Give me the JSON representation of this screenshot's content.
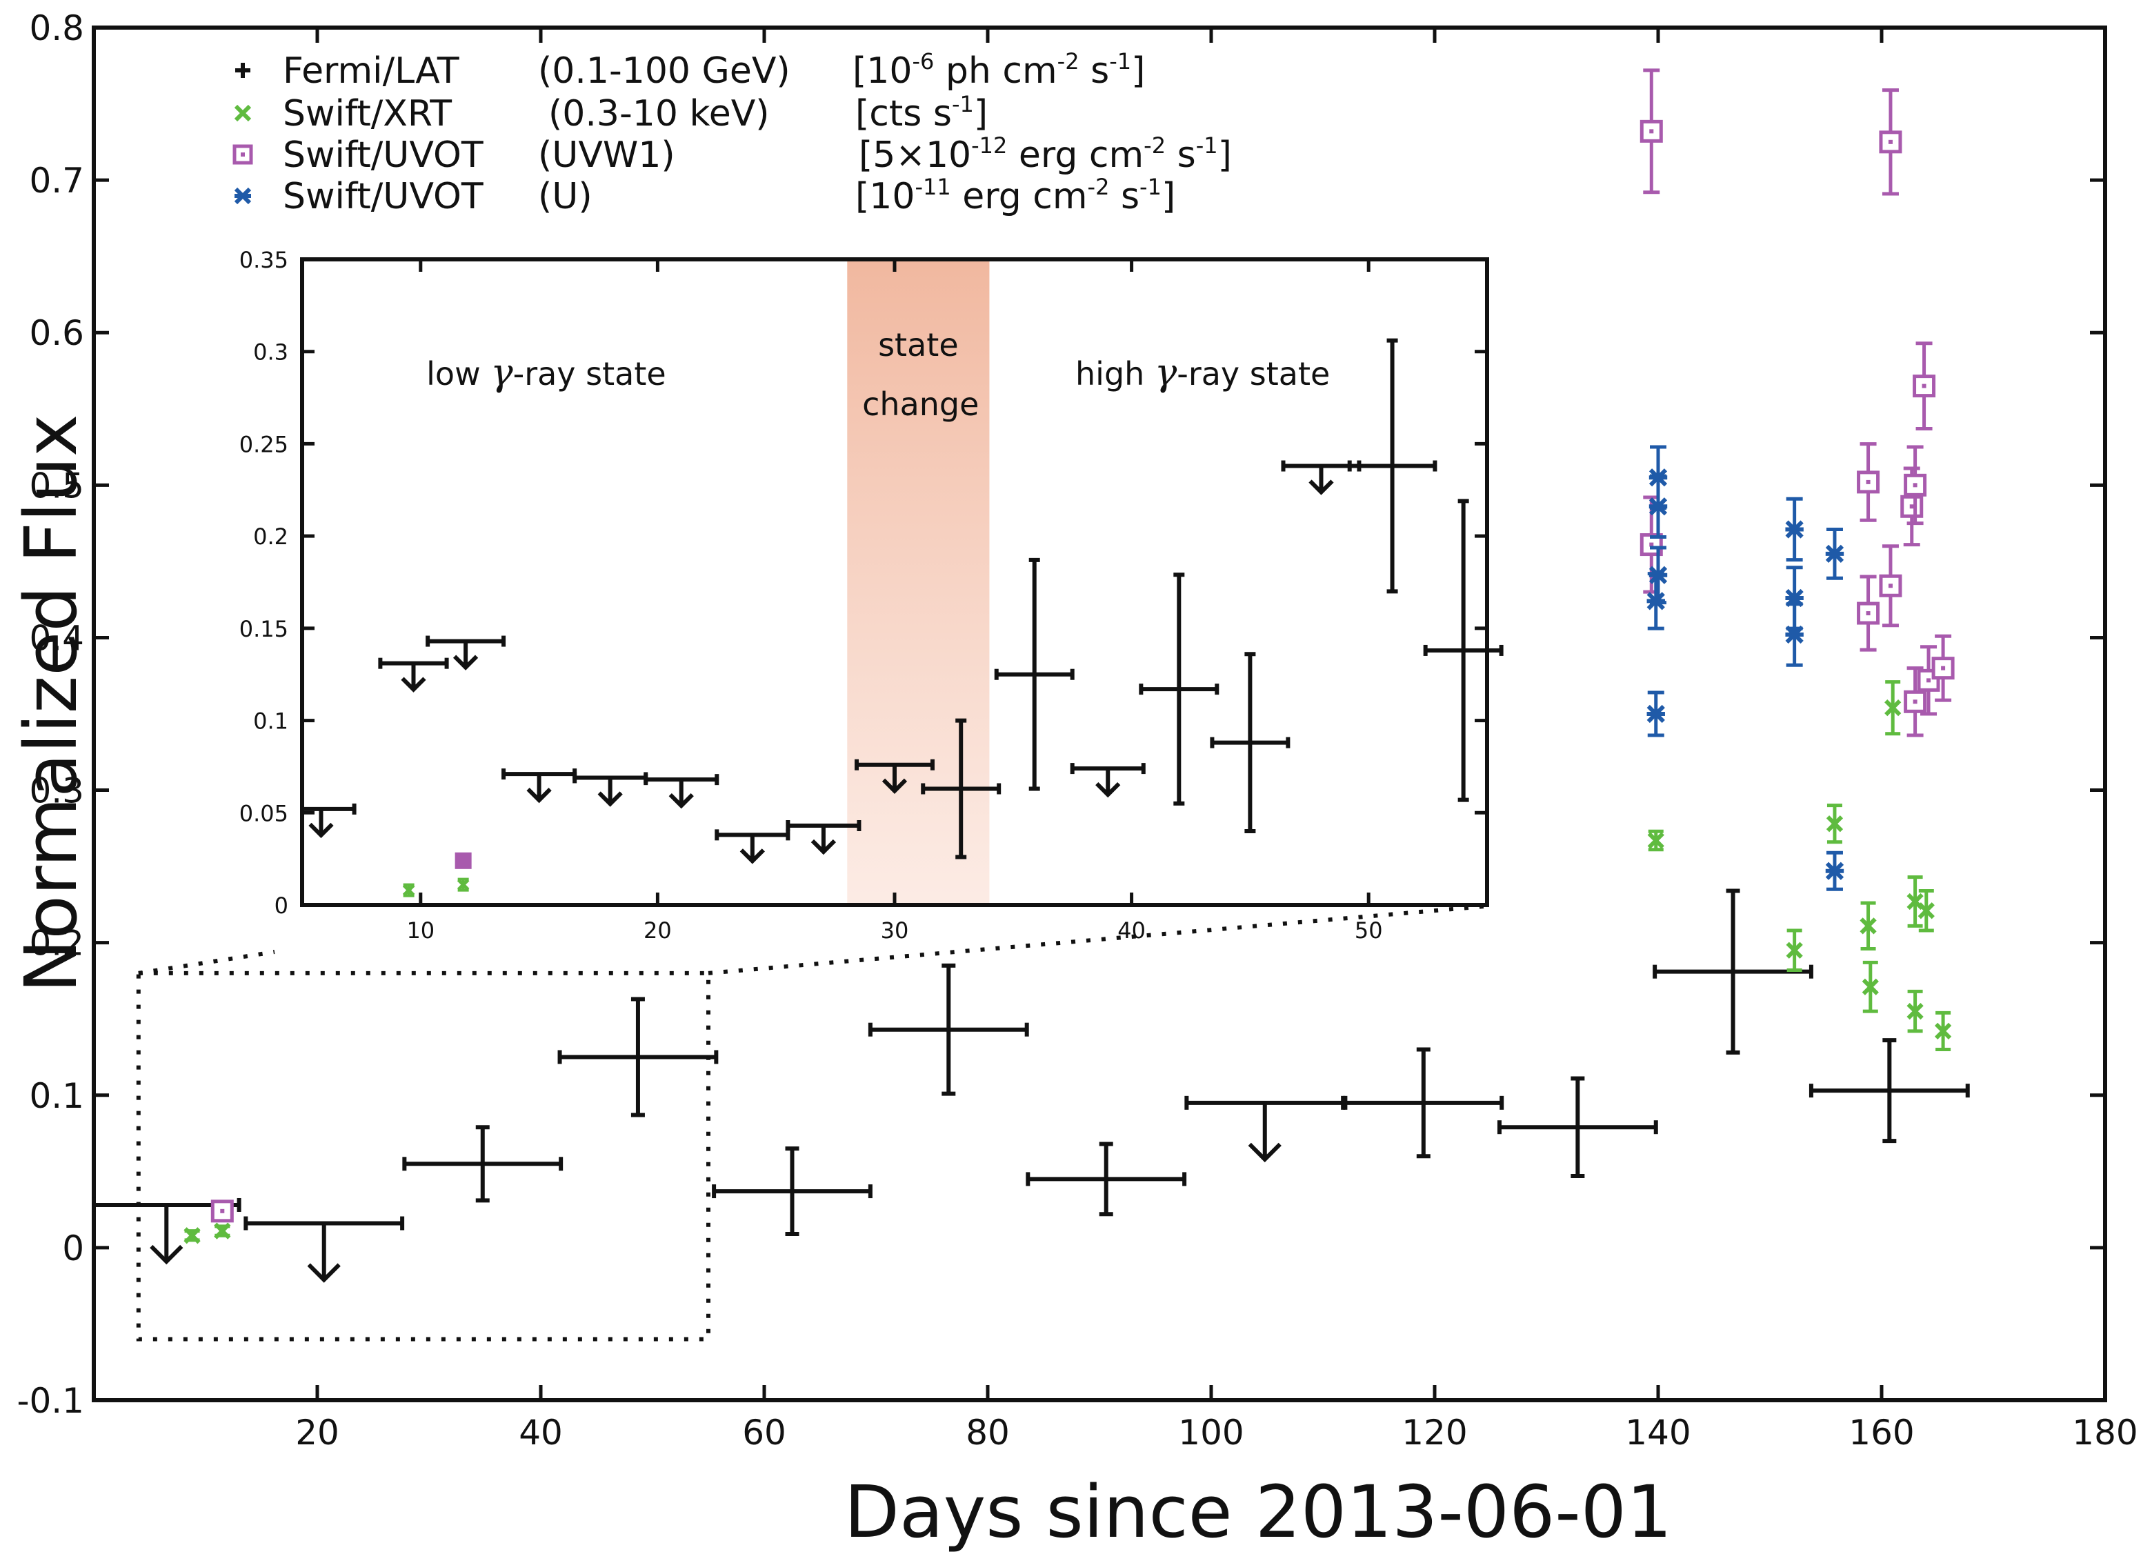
{
  "chart_data": {
    "type": "scatter",
    "xlabel": "Days since 2013-06-01",
    "ylabel": "Normalized Flux",
    "xlim": [
      0,
      180
    ],
    "ylim": [
      -0.1,
      0.8
    ],
    "xticks": [
      20,
      40,
      60,
      80,
      100,
      120,
      140,
      160,
      180
    ],
    "yticks": [
      -0.1,
      0,
      0.1,
      0.2,
      0.3,
      0.4,
      0.5,
      0.6,
      0.7,
      0.8
    ],
    "xtick_labels": [
      "20",
      "40",
      "60",
      "80",
      "100",
      "120",
      "140",
      "160",
      "180"
    ],
    "ytick_labels": [
      "-0.1",
      "0",
      "0.1",
      "0.2",
      "0.3",
      "0.4",
      "0.5",
      "0.6",
      "0.7",
      "0.8"
    ],
    "grid": false,
    "legend_position": "top-left",
    "legend": [
      {
        "name": "Fermi/LAT",
        "band": "(0.1-100 GeV)",
        "unit": "[10",
        "exp": "-6",
        "unit2": " ph cm",
        "exp2": "-2",
        "unit3": " s",
        "exp3": "-1",
        "unit4": "]",
        "color": "#111111",
        "marker": "plus"
      },
      {
        "name": "Swift/XRT",
        "band": "(0.3-10 keV)",
        "unit": "[cts s",
        "exp": "-1",
        "unit2": "]",
        "color": "#5fbb3f",
        "marker": "cross"
      },
      {
        "name": "Swift/UVOT",
        "band": "(UVW1)",
        "unit": "[5×10",
        "exp": "-12",
        "unit2": " erg cm",
        "exp2": "-2",
        "unit3": " s",
        "exp3": "-1",
        "unit4": "]",
        "color": "#a85aad",
        "marker": "square"
      },
      {
        "name": "Swift/UVOT",
        "band": "(U)",
        "unit": "[10",
        "exp": "-11",
        "unit2": " erg cm",
        "exp2": "-2",
        "unit3": " s",
        "exp3": "-1",
        "unit4": "]",
        "color": "#1f5aa8",
        "marker": "star"
      }
    ],
    "series": [
      {
        "name": "Fermi/LAT",
        "color": "#111111",
        "points": [
          {
            "x": 62.5,
            "xerr": 7,
            "y": 0.037,
            "yerr": 0.028
          },
          {
            "x": 34.8,
            "xerr": 7,
            "y": 0.055,
            "yerr": 0.024
          },
          {
            "x": 48.7,
            "xerr": 7,
            "y": 0.125,
            "yerr": 0.038
          },
          {
            "x": 76.5,
            "xerr": 7,
            "y": 0.143,
            "yerr": 0.042
          },
          {
            "x": 90.6,
            "xerr": 7,
            "y": 0.045,
            "yerr": 0.023
          },
          {
            "x": 119.0,
            "xerr": 7,
            "y": 0.095,
            "yerr": 0.035
          },
          {
            "x": 132.8,
            "xerr": 7,
            "y": 0.079,
            "yerr": 0.032
          },
          {
            "x": 146.7,
            "xerr": 7,
            "y": 0.181,
            "yerr": 0.053
          },
          {
            "x": 160.7,
            "xerr": 7,
            "y": 0.103,
            "yerr": 0.033
          }
        ],
        "upper_limits": [
          {
            "x": 6.5,
            "xerr": 6.5,
            "y": 0.028
          },
          {
            "x": 20.6,
            "xerr": 7,
            "y": 0.016
          },
          {
            "x": 104.8,
            "xerr": 7,
            "y": 0.095
          }
        ]
      },
      {
        "name": "Swift/XRT",
        "color": "#5fbb3f",
        "points": [
          {
            "x": 8.8,
            "y": 0.008,
            "yerr": 0.003
          },
          {
            "x": 11.5,
            "y": 0.011,
            "yerr": 0.003
          },
          {
            "x": 139.8,
            "y": 0.267,
            "yerr": 0.006
          },
          {
            "x": 152.2,
            "y": 0.195,
            "yerr": 0.013
          },
          {
            "x": 155.8,
            "y": 0.278,
            "yerr": 0.012
          },
          {
            "x": 158.8,
            "y": 0.211,
            "yerr": 0.015
          },
          {
            "x": 159.0,
            "y": 0.171,
            "yerr": 0.016
          },
          {
            "x": 161.0,
            "y": 0.354,
            "yerr": 0.017
          },
          {
            "x": 163.0,
            "y": 0.155,
            "yerr": 0.013
          },
          {
            "x": 163.0,
            "y": 0.227,
            "yerr": 0.016
          },
          {
            "x": 164.0,
            "y": 0.221,
            "yerr": 0.013
          },
          {
            "x": 165.5,
            "y": 0.142,
            "yerr": 0.012
          }
        ]
      },
      {
        "name": "Swift/UVOT (UVW1)",
        "color": "#a85aad",
        "points": [
          {
            "x": 11.5,
            "y": 0.024,
            "yerr": 0.004
          },
          {
            "x": 139.4,
            "y": 0.732,
            "yerr": 0.04
          },
          {
            "x": 139.4,
            "y": 0.461,
            "yerr": 0.031
          },
          {
            "x": 158.8,
            "y": 0.502,
            "yerr": 0.025
          },
          {
            "x": 158.8,
            "y": 0.416,
            "yerr": 0.024
          },
          {
            "x": 160.8,
            "y": 0.725,
            "yerr": 0.034
          },
          {
            "x": 160.8,
            "y": 0.434,
            "yerr": 0.026
          },
          {
            "x": 162.7,
            "y": 0.486,
            "yerr": 0.025
          },
          {
            "x": 163.0,
            "y": 0.5,
            "yerr": 0.025
          },
          {
            "x": 163.0,
            "y": 0.358,
            "yerr": 0.022
          },
          {
            "x": 163.8,
            "y": 0.565,
            "yerr": 0.028
          },
          {
            "x": 164.2,
            "y": 0.372,
            "yerr": 0.022
          },
          {
            "x": 165.5,
            "y": 0.38,
            "yerr": 0.021
          }
        ]
      },
      {
        "name": "Swift/UVOT (U)",
        "color": "#1f5aa8",
        "points": [
          {
            "x": 139.8,
            "y": 0.35,
            "yerr": 0.014
          },
          {
            "x": 139.8,
            "y": 0.424,
            "yerr": 0.018
          },
          {
            "x": 140.0,
            "y": 0.441,
            "yerr": 0.018
          },
          {
            "x": 140.0,
            "y": 0.486,
            "yerr": 0.02
          },
          {
            "x": 140.0,
            "y": 0.505,
            "yerr": 0.02
          },
          {
            "x": 152.2,
            "y": 0.402,
            "yerr": 0.02
          },
          {
            "x": 152.2,
            "y": 0.426,
            "yerr": 0.02
          },
          {
            "x": 152.2,
            "y": 0.471,
            "yerr": 0.02
          },
          {
            "x": 155.8,
            "y": 0.247,
            "yerr": 0.012
          },
          {
            "x": 155.8,
            "y": 0.455,
            "yerr": 0.016
          }
        ]
      }
    ],
    "zoom_box": {
      "xlim": [
        4,
        55
      ],
      "ylim": [
        -0.06,
        0.18
      ]
    },
    "inset": {
      "xlim": [
        5,
        55
      ],
      "ylim": [
        0,
        0.35
      ],
      "xticks": [
        10,
        20,
        30,
        40,
        50
      ],
      "yticks": [
        0,
        0.05,
        0.1,
        0.15,
        0.2,
        0.25,
        0.3,
        0.35
      ],
      "xtick_labels": [
        "10",
        "20",
        "30",
        "40",
        "50"
      ],
      "ytick_labels": [
        "0",
        "0.05",
        "0.1",
        "0.15",
        "0.2",
        "0.25",
        "0.3",
        "0.35"
      ],
      "state_change_band": [
        28,
        34
      ],
      "annotations": {
        "low": [
          "low ",
          "γ",
          "-ray state"
        ],
        "state": [
          "state",
          "change"
        ],
        "high": [
          "high ",
          "γ",
          "-ray state"
        ]
      },
      "lat_points": [
        {
          "x": 32.8,
          "xerr": 1.6,
          "y": 0.063,
          "yerr": 0.037
        },
        {
          "x": 35.9,
          "xerr": 1.6,
          "y": 0.125,
          "yerr": 0.062
        },
        {
          "x": 42.0,
          "xerr": 1.6,
          "y": 0.117,
          "yerr": 0.062
        },
        {
          "x": 45.0,
          "xerr": 1.6,
          "y": 0.088,
          "yerr": 0.048
        },
        {
          "x": 51.0,
          "xerr": 1.8,
          "y": 0.238,
          "yerr": 0.068
        },
        {
          "x": 54.0,
          "xerr": 1.6,
          "y": 0.138,
          "yerr": 0.081
        }
      ],
      "lat_upper_limits": [
        {
          "x": 5.8,
          "xerr": 1.4,
          "y": 0.052
        },
        {
          "x": 9.7,
          "xerr": 1.4,
          "y": 0.131
        },
        {
          "x": 11.9,
          "xerr": 1.6,
          "y": 0.143
        },
        {
          "x": 15.0,
          "xerr": 1.5,
          "y": 0.071
        },
        {
          "x": 18.0,
          "xerr": 1.5,
          "y": 0.069
        },
        {
          "x": 21.0,
          "xerr": 1.5,
          "y": 0.068
        },
        {
          "x": 24.0,
          "xerr": 1.5,
          "y": 0.038
        },
        {
          "x": 27.0,
          "xerr": 1.5,
          "y": 0.043
        },
        {
          "x": 30.0,
          "xerr": 1.6,
          "y": 0.076
        },
        {
          "x": 39.0,
          "xerr": 1.5,
          "y": 0.074
        },
        {
          "x": 48.0,
          "xerr": 1.6,
          "y": 0.238
        }
      ],
      "xrt_points": [
        {
          "x": 9.5,
          "y": 0.008
        },
        {
          "x": 11.8,
          "y": 0.011
        }
      ],
      "uvw1_points": [
        {
          "x": 11.8,
          "y": 0.024
        }
      ]
    }
  }
}
